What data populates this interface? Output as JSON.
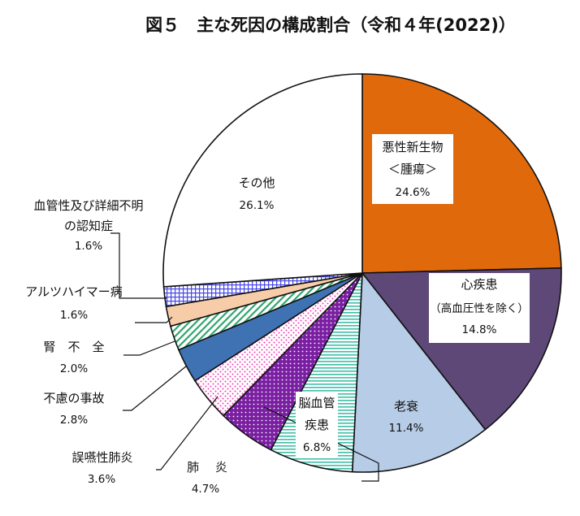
{
  "title": "図５　主な死因の構成割合（令和４年(2022)）",
  "chart_data": {
    "type": "pie",
    "title": "図５　主な死因の構成割合（令和４年(2022)）",
    "start": "12 o'clock",
    "direction": "clockwise",
    "slices": [
      {
        "label": "悪性新生物",
        "sublabel": "＜腫瘍＞",
        "value": 24.6,
        "display": "24.6%",
        "color": "#e0690b",
        "pattern": "solid"
      },
      {
        "label": "心疾患",
        "sublabel": "（高血圧性を除く）",
        "value": 14.8,
        "display": "14.8%",
        "color": "#5e4878",
        "pattern": "solid"
      },
      {
        "label": "老衰",
        "sublabel": "",
        "value": 11.4,
        "display": "11.4%",
        "color": "#b7cce6",
        "pattern": "solid"
      },
      {
        "label": "脳血管",
        "sublabel": "疾患",
        "value": 6.8,
        "display": "6.8%",
        "color": "#3fbfa8",
        "pattern": "horizontal-lines"
      },
      {
        "label": "肺　 炎",
        "sublabel": "",
        "value": 4.7,
        "display": "4.7%",
        "color": "#7a1fa2",
        "pattern": "dots-dark"
      },
      {
        "label": "誤嚥性肺炎",
        "sublabel": "",
        "value": 3.6,
        "display": "3.6%",
        "color": "#ee3fb5",
        "pattern": "dots-light"
      },
      {
        "label": "不慮の事故",
        "sublabel": "",
        "value": 2.8,
        "display": "2.8%",
        "color": "#3f72b3",
        "pattern": "solid"
      },
      {
        "label": "腎　不　全",
        "sublabel": "",
        "value": 2.0,
        "display": "2.0%",
        "color": "#2fa36b",
        "pattern": "diagonal-lines"
      },
      {
        "label": "アルツハイマー病",
        "sublabel": "",
        "value": 1.6,
        "display": "1.6%",
        "color": "#f7cda9",
        "pattern": "solid"
      },
      {
        "label": "血管性及び詳細不明",
        "sublabel": "の認知症",
        "value": 1.6,
        "display": "1.6%",
        "color": "#4747e6",
        "pattern": "grid"
      },
      {
        "label": "その他",
        "sublabel": "",
        "value": 26.1,
        "display": "26.1%",
        "color": "#ffffff",
        "pattern": "solid"
      }
    ]
  }
}
